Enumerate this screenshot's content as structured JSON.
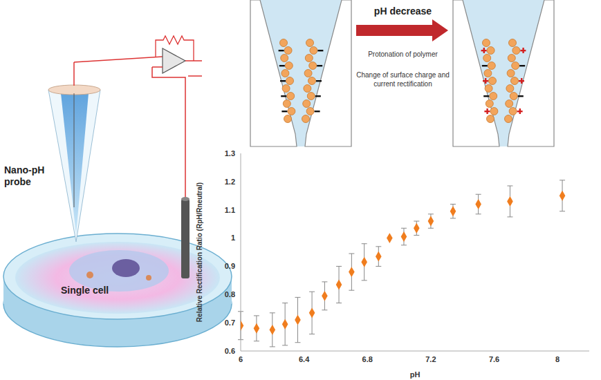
{
  "chart_data": {
    "type": "scatter",
    "x_label": "pH",
    "y_label": "Relative Rectification Ratio (RpH/Rneutral)",
    "x": [
      6.0,
      6.1,
      6.2,
      6.28,
      6.36,
      6.45,
      6.53,
      6.62,
      6.7,
      6.78,
      6.87,
      6.94,
      7.03,
      7.11,
      7.2,
      7.34,
      7.5,
      7.7,
      8.03
    ],
    "values": [
      0.69,
      0.68,
      0.675,
      0.695,
      0.71,
      0.735,
      0.795,
      0.835,
      0.88,
      0.915,
      0.935,
      1.0,
      1.005,
      1.035,
      1.06,
      1.095,
      1.12,
      1.13,
      1.15
    ],
    "errors": [
      0.05,
      0.045,
      0.06,
      0.075,
      0.08,
      0.075,
      0.05,
      0.065,
      0.065,
      0.065,
      0.035,
      0,
      0.03,
      0.025,
      0.025,
      0.025,
      0.035,
      0.055,
      0.055
    ],
    "color": "#f07d1e",
    "marker": "diamond",
    "xlim": [
      6,
      8.2
    ],
    "xticks": [
      6,
      6.4,
      6.8,
      7.2,
      7.6,
      8
    ],
    "ylim": [
      0.6,
      1.3
    ],
    "yticks": [
      0.6,
      0.7,
      0.8,
      0.9,
      1,
      1.1,
      1.2,
      1.3
    ],
    "grid": false
  },
  "diagram": {
    "probe_label": "Nano-pH probe",
    "cell_label": "Single cell",
    "arrow_label": "pH decrease",
    "notes": [
      "Protonation of polymer",
      "Change of surface charge and current rectification"
    ]
  }
}
